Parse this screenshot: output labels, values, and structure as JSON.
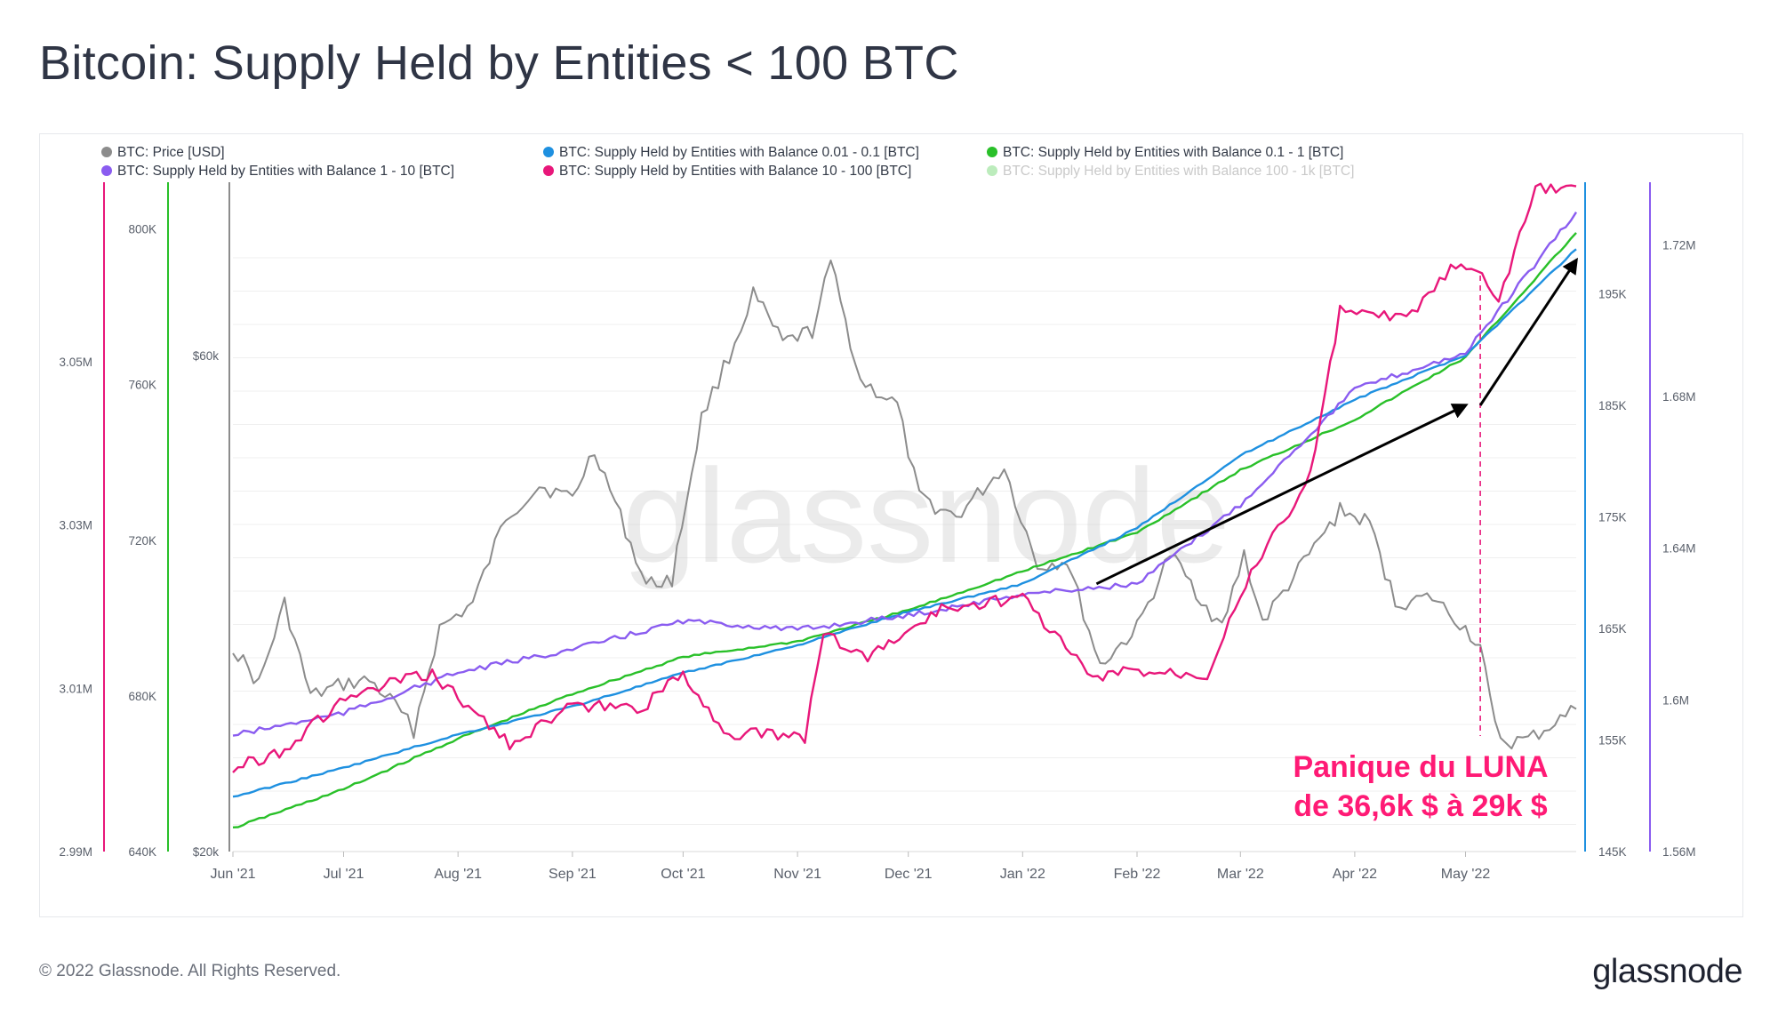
{
  "title": "Bitcoin: Supply Held by Entities < 100 BTC",
  "footer": "© 2022 Glassnode. All Rights Reserved.",
  "brand": "glassnode",
  "watermark": "glassnode",
  "chart_data": {
    "type": "line",
    "x_ticks": [
      "Jun '21",
      "Jul '21",
      "Aug '21",
      "Sep '21",
      "Oct '21",
      "Nov '21",
      "Dec '21",
      "Jan '22",
      "Feb '22",
      "Mar '22",
      "Apr '22",
      "May '22"
    ],
    "x_range": [
      "2021-06-01",
      "2022-05-31"
    ],
    "legend_placement": "top",
    "grid": true,
    "series": [
      {
        "name": "BTC: Price [USD]",
        "color": "#8c8c8c",
        "axis": "price",
        "muted": false,
        "points": [
          [
            "2021-06-01",
            36500
          ],
          [
            "2021-06-08",
            33500
          ],
          [
            "2021-06-15",
            40000
          ],
          [
            "2021-06-22",
            32500
          ],
          [
            "2021-07-01",
            33500
          ],
          [
            "2021-07-08",
            33800
          ],
          [
            "2021-07-15",
            31800
          ],
          [
            "2021-07-20",
            29800
          ],
          [
            "2021-07-27",
            38000
          ],
          [
            "2021-08-05",
            40000
          ],
          [
            "2021-08-14",
            47000
          ],
          [
            "2021-08-23",
            49500
          ],
          [
            "2021-09-01",
            48500
          ],
          [
            "2021-09-07",
            52500
          ],
          [
            "2021-09-14",
            47000
          ],
          [
            "2021-09-21",
            41500
          ],
          [
            "2021-09-28",
            42000
          ],
          [
            "2021-10-06",
            55000
          ],
          [
            "2021-10-15",
            61000
          ],
          [
            "2021-10-20",
            65000
          ],
          [
            "2021-10-28",
            61000
          ],
          [
            "2021-11-05",
            62000
          ],
          [
            "2021-11-10",
            67500
          ],
          [
            "2021-11-18",
            58000
          ],
          [
            "2021-11-28",
            56000
          ],
          [
            "2021-12-04",
            48500
          ],
          [
            "2021-12-14",
            47000
          ],
          [
            "2021-12-27",
            51000
          ],
          [
            "2022-01-05",
            43000
          ],
          [
            "2022-01-13",
            43500
          ],
          [
            "2022-01-22",
            35000
          ],
          [
            "2022-02-01",
            38000
          ],
          [
            "2022-02-10",
            44000
          ],
          [
            "2022-02-24",
            38000
          ],
          [
            "2022-03-02",
            44000
          ],
          [
            "2022-03-07",
            38500
          ],
          [
            "2022-03-28",
            47500
          ],
          [
            "2022-04-05",
            46500
          ],
          [
            "2022-04-12",
            40000
          ],
          [
            "2022-04-22",
            40500
          ],
          [
            "2022-05-01",
            38000
          ],
          [
            "2022-05-05",
            36500
          ],
          [
            "2022-05-09",
            30000
          ],
          [
            "2022-05-12",
            28800
          ],
          [
            "2022-05-18",
            29000
          ],
          [
            "2022-05-31",
            31500
          ]
        ]
      },
      {
        "name": "BTC: Supply Held by Entities with Balance 0.01 - 0.1 [BTC]",
        "color": "#1e90e0",
        "axis": "supply_001_01",
        "muted": false,
        "points": [
          [
            "2021-06-01",
            149900
          ],
          [
            "2021-07-01",
            152500
          ],
          [
            "2021-08-01",
            155500
          ],
          [
            "2021-09-01",
            158000
          ],
          [
            "2021-10-01",
            161000
          ],
          [
            "2021-11-01",
            163500
          ],
          [
            "2021-12-01",
            166500
          ],
          [
            "2022-01-01",
            169000
          ],
          [
            "2022-02-01",
            174000
          ],
          [
            "2022-03-01",
            180500
          ],
          [
            "2022-04-01",
            185500
          ],
          [
            "2022-05-01",
            189500
          ],
          [
            "2022-05-31",
            199000
          ]
        ]
      },
      {
        "name": "BTC: Supply Held by Entities with Balance 0.1 - 1 [BTC]",
        "color": "#29c029",
        "axis": "supply_01_1",
        "muted": false,
        "points": [
          [
            "2021-06-01",
            646000
          ],
          [
            "2021-07-01",
            656000
          ],
          [
            "2021-08-01",
            669000
          ],
          [
            "2021-09-01",
            680500
          ],
          [
            "2021-10-01",
            690000
          ],
          [
            "2021-11-01",
            694000
          ],
          [
            "2021-12-01",
            702000
          ],
          [
            "2022-01-01",
            712000
          ],
          [
            "2022-02-01",
            722000
          ],
          [
            "2022-03-01",
            738000
          ],
          [
            "2022-04-01",
            751000
          ],
          [
            "2022-05-01",
            767000
          ],
          [
            "2022-05-31",
            799000
          ]
        ]
      },
      {
        "name": "BTC: Supply Held by Entities with Balance 1 - 10 [BTC]",
        "color": "#8a5cf0",
        "axis": "supply_1_10",
        "muted": false,
        "points": [
          [
            "2021-06-01",
            1590700.0
          ],
          [
            "2021-07-01",
            1596500.0
          ],
          [
            "2021-08-01",
            1607200.0
          ],
          [
            "2021-09-01",
            1613300.0
          ],
          [
            "2021-10-01",
            1620800.0
          ],
          [
            "2021-11-01",
            1618500.0
          ],
          [
            "2021-12-01",
            1622300.0
          ],
          [
            "2022-01-01",
            1627900.0
          ],
          [
            "2022-02-01",
            1630500.0
          ],
          [
            "2022-03-01",
            1651500.0
          ],
          [
            "2022-04-01",
            1682000.0
          ],
          [
            "2022-05-01",
            1691500.0
          ],
          [
            "2022-05-31",
            1728600.0
          ]
        ]
      },
      {
        "name": "BTC: Supply Held by Entities with Balance 10 - 100 [BTC]",
        "color": "#e8177a",
        "axis": "supply_10_100",
        "muted": false,
        "points": [
          [
            "2021-06-01",
            3000200.0
          ],
          [
            "2021-06-15",
            3002500.0
          ],
          [
            "2021-06-30",
            3008300.0
          ],
          [
            "2021-07-15",
            3010800.0
          ],
          [
            "2021-07-25",
            3011700.0
          ],
          [
            "2021-08-15",
            3003200.0
          ],
          [
            "2021-09-01",
            3007800.0
          ],
          [
            "2021-09-20",
            3007600.0
          ],
          [
            "2021-10-01",
            3011900.0
          ],
          [
            "2021-10-12",
            3004600.0
          ],
          [
            "2021-11-03",
            3004000.0
          ],
          [
            "2021-11-08",
            3016700.0
          ],
          [
            "2021-11-20",
            3013800.0
          ],
          [
            "2021-12-10",
            3019700.0
          ],
          [
            "2022-01-01",
            3021200.0
          ],
          [
            "2022-01-20",
            3011200.0
          ],
          [
            "2022-01-31",
            3012200.0
          ],
          [
            "2022-02-20",
            3011800.0
          ],
          [
            "2022-03-01",
            3021800.0
          ],
          [
            "2022-03-20",
            3036100.0
          ],
          [
            "2022-03-28",
            3056200.0
          ],
          [
            "2022-04-15",
            3055200.0
          ],
          [
            "2022-04-27",
            3061300.0
          ],
          [
            "2022-05-04",
            3061200.0
          ],
          [
            "2022-05-10",
            3057500.0
          ],
          [
            "2022-05-20",
            3071000.0
          ],
          [
            "2022-05-31",
            3071500.0
          ]
        ]
      },
      {
        "name": "BTC: Supply Held by Entities with Balance 100 - 1k [BTC]",
        "color": "#8fe08f",
        "axis": "none",
        "muted": true,
        "points": []
      }
    ],
    "axes": {
      "supply_10_100": {
        "side": "left",
        "color": "#e8177a",
        "min": 2990000.0,
        "max": 3072000.0,
        "ticks": [
          {
            "v": 2990000.0,
            "label": "2.99M"
          },
          {
            "v": 3010000.0,
            "label": "3.01M"
          },
          {
            "v": 3030000.0,
            "label": "3.03M"
          },
          {
            "v": 3050000.0,
            "label": "3.05M"
          }
        ]
      },
      "supply_01_1": {
        "side": "left",
        "color": "#29c029",
        "min": 640000,
        "max": 812000,
        "ticks": [
          {
            "v": 640000,
            "label": "640K"
          },
          {
            "v": 680000,
            "label": "680K"
          },
          {
            "v": 720000,
            "label": "720K"
          },
          {
            "v": 760000,
            "label": "760K"
          },
          {
            "v": 800000,
            "label": "800K"
          }
        ]
      },
      "price": {
        "side": "left",
        "color": "#8c8c8c",
        "min": 20000,
        "max": 74000,
        "ticks": [
          {
            "v": 20000,
            "label": "$20k"
          },
          {
            "v": 60000,
            "label": "$60k"
          }
        ]
      },
      "supply_001_01": {
        "side": "right",
        "color": "#1e90e0",
        "min": 145000,
        "max": 205000,
        "ticks": [
          {
            "v": 145000,
            "label": "145K"
          },
          {
            "v": 155000,
            "label": "155K"
          },
          {
            "v": 165000,
            "label": "165K"
          },
          {
            "v": 175000,
            "label": "175K"
          },
          {
            "v": 185000,
            "label": "185K"
          },
          {
            "v": 195000,
            "label": "195K"
          }
        ]
      },
      "supply_1_10": {
        "side": "right",
        "color": "#8a5cf0",
        "min": 1560000.0,
        "max": 1736500.0,
        "ticks": [
          {
            "v": 1560000.0,
            "label": "1.56M"
          },
          {
            "v": 1600000.0,
            "label": "1.6M"
          },
          {
            "v": 1640000.0,
            "label": "1.64M"
          },
          {
            "v": 1680000.0,
            "label": "1.68M"
          },
          {
            "v": 1720000.0,
            "label": "1.72M"
          }
        ]
      }
    },
    "annotations": {
      "text_lines": [
        "Panique du LUNA",
        "de 36,6k $ à 29k $"
      ],
      "text_color": "#ff1a75",
      "marker_date": "2022-05-05",
      "arrows": [
        {
          "from": [
            "2022-01-21",
            169000
          ],
          "to": [
            "2022-05-01",
            185000
          ]
        },
        {
          "from": [
            "2022-05-05",
            185000
          ],
          "to": [
            "2022-05-31",
            198000
          ]
        }
      ]
    }
  }
}
